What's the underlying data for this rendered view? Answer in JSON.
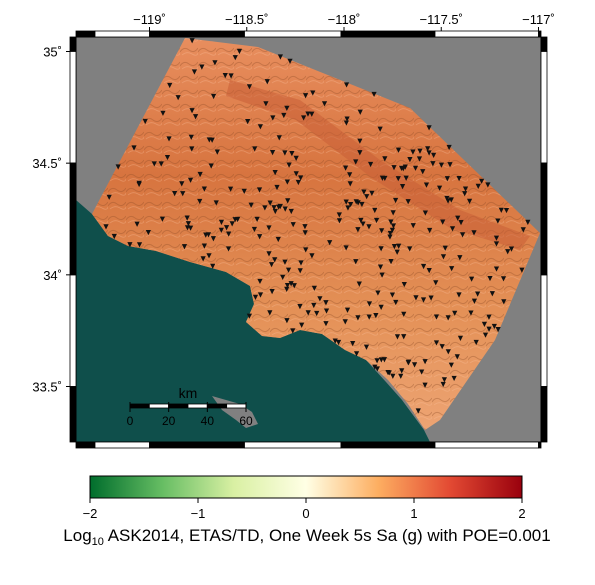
{
  "map": {
    "x_axis": {
      "ticks": [
        {
          "value": -119.0,
          "label": "−119˚"
        },
        {
          "value": -118.5,
          "label": "−118.5˚"
        },
        {
          "value": -118.0,
          "label": "−118˚"
        },
        {
          "value": -117.5,
          "label": "−117.5˚"
        },
        {
          "value": -117.0,
          "label": "−117˚"
        }
      ]
    },
    "y_axis": {
      "ticks": [
        {
          "value": 35.0,
          "label": "35˚"
        },
        {
          "value": 34.5,
          "label": "34.5˚"
        },
        {
          "value": 34.0,
          "label": "34˚"
        },
        {
          "value": 33.5,
          "label": "33.5˚"
        }
      ]
    },
    "scale_bar": {
      "unit": "km",
      "ticks": [
        "0",
        "20",
        "40",
        "60"
      ]
    },
    "colors": {
      "ocean": "#0f4f4b",
      "no_data": "#808080",
      "hazard_dark": "#c66a3f",
      "hazard_mid": "#e08a5b",
      "hazard_light": "#f2a87a",
      "station_marker": "#111111"
    },
    "legend": {
      "type": "colorbar",
      "placement": "bottom"
    }
  },
  "colorbar": {
    "min": -2,
    "max": 2,
    "ticks": [
      {
        "value": -2,
        "label": "−2"
      },
      {
        "value": -1,
        "label": "−1"
      },
      {
        "value": 0,
        "label": "0"
      },
      {
        "value": 1,
        "label": "1"
      },
      {
        "value": 2,
        "label": "2"
      }
    ],
    "colors": [
      "#006d2c",
      "#66bd63",
      "#d9f0a3",
      "#ffffe5",
      "#fdae61",
      "#e34a33",
      "#99000d"
    ]
  },
  "caption": {
    "log_prefix": "Log",
    "subscript": "10",
    "text": " ASK2014, ETAS/TD, One Week 5s Sa (g) with POE=0.001"
  }
}
